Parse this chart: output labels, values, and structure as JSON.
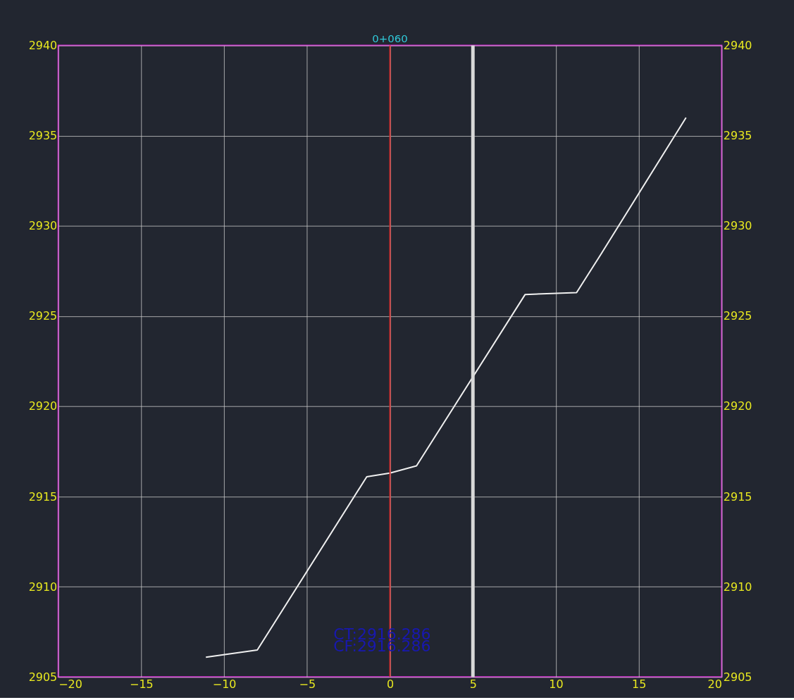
{
  "chart_data": {
    "type": "line",
    "x": [
      -11.1,
      -8.0,
      -1.4,
      0.0,
      1.6,
      8.15,
      11.25,
      12.7,
      17.85
    ],
    "series": [
      {
        "color": "#f0f0f0",
        "values": [
          2906.1,
          2906.5,
          2916.1,
          2916.3,
          2916.7,
          2926.2,
          2926.3,
          2928.4,
          2936.0
        ]
      }
    ],
    "xlim": [
      -20,
      20
    ],
    "xticks": [
      -20,
      -15,
      -10,
      -5,
      0,
      5,
      10,
      15,
      20
    ],
    "ylim": [
      2905,
      2940
    ],
    "yticks": [
      2905,
      2910,
      2915,
      2920,
      2925,
      2930,
      2935,
      2940
    ],
    "y2lim": [
      2905,
      2940
    ],
    "y2ticks": [
      2905,
      2910,
      2915,
      2920,
      2925,
      2930,
      2935,
      2940
    ],
    "ref_lines": [
      {
        "axis": "x",
        "value": 0,
        "label": "0+060",
        "color": "#d03030"
      },
      {
        "axis": "x",
        "value": 5,
        "label": null,
        "color": "#d8d8d8"
      }
    ],
    "annotations": [
      "CT:2916.286",
      "CF:2916.286"
    ],
    "grid": true,
    "marker": "none",
    "line_style": "solid"
  }
}
